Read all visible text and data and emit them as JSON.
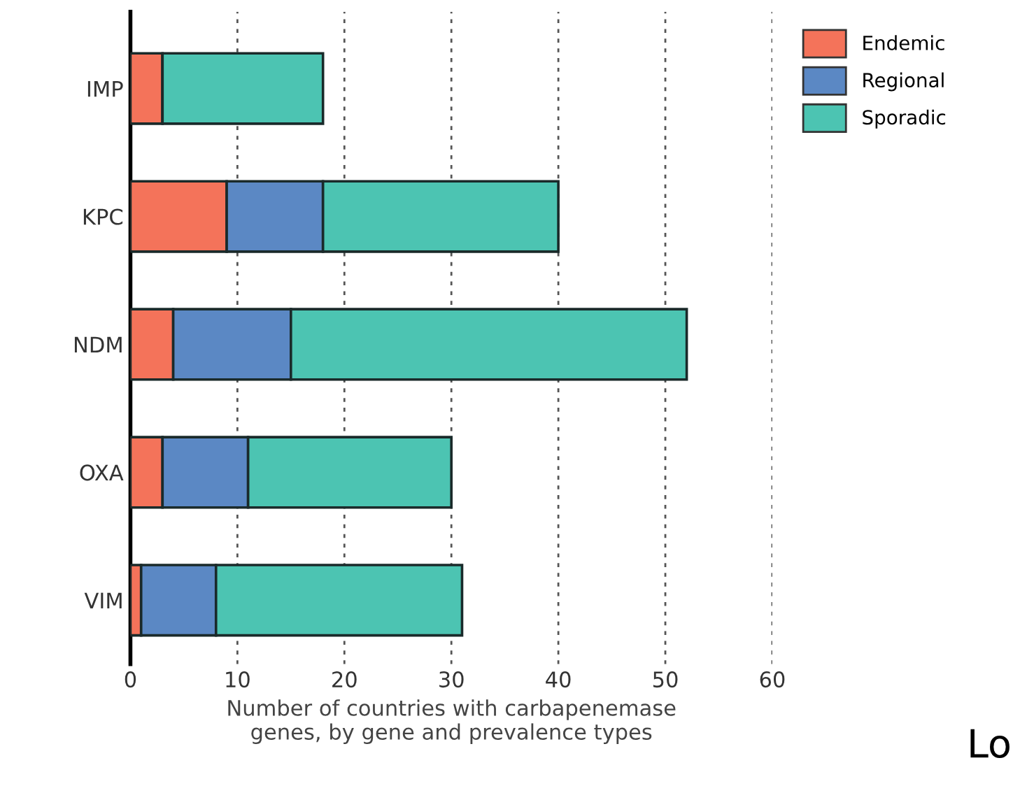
{
  "chart_data": {
    "type": "bar",
    "orientation": "horizontal",
    "stacked": true,
    "categories": [
      "IMP",
      "KPC",
      "NDM",
      "OXA",
      "VIM"
    ],
    "series": [
      {
        "name": "Endemic",
        "color": "#f4735a",
        "values": [
          3,
          9,
          4,
          3,
          1
        ]
      },
      {
        "name": "Regional",
        "color": "#5b88c4",
        "values": [
          0,
          9,
          11,
          8,
          7
        ]
      },
      {
        "name": "Sporadic",
        "color": "#4cc4b2",
        "values": [
          15,
          22,
          37,
          19,
          23
        ]
      }
    ],
    "xlabel": "Number of countries with carbapenemase\ngenes, by gene and prevalence types",
    "xlim": [
      0,
      60
    ],
    "xticks": [
      0,
      10,
      20,
      30,
      40,
      50,
      60
    ],
    "grid": "x",
    "legend": "top right",
    "annotations": [
      "Lo"
    ]
  }
}
